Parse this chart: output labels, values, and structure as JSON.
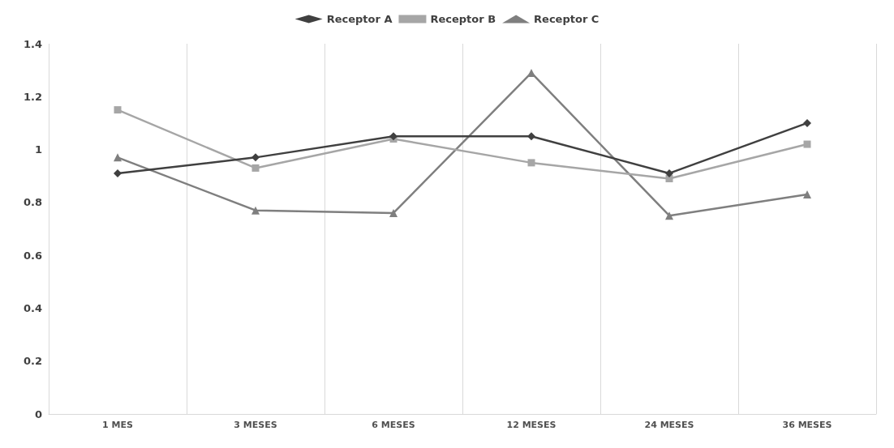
{
  "chart_data": {
    "type": "line",
    "categories": [
      "1 MES",
      "3 MESES",
      "6 MESES",
      "12 MESES",
      "24 MESES",
      "36 MESES"
    ],
    "series": [
      {
        "name": "Receptor A",
        "color": "#404040",
        "marker": "diamond",
        "values": [
          0.91,
          0.97,
          1.05,
          1.05,
          0.91,
          1.1
        ]
      },
      {
        "name": "Receptor B",
        "color": "#a6a6a6",
        "marker": "square",
        "values": [
          1.15,
          0.93,
          1.04,
          0.95,
          0.89,
          1.02
        ]
      },
      {
        "name": "Receptor C",
        "color": "#7f7f7f",
        "marker": "triangle",
        "values": [
          0.97,
          0.77,
          0.76,
          1.29,
          0.75,
          0.83
        ]
      }
    ],
    "ylim": [
      0,
      1.4
    ],
    "yticks": [
      0,
      0.2,
      0.4,
      0.6,
      0.8,
      1,
      1.2,
      1.4
    ],
    "grid": "x",
    "legend": "top",
    "line_style": "solid"
  }
}
